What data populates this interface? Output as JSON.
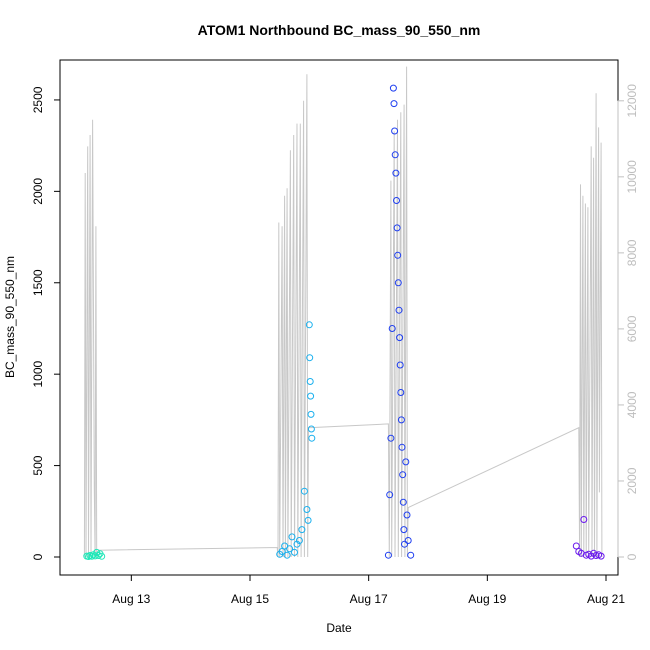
{
  "chart_data": {
    "type": "scatter",
    "title": "ATOM1 Northbound BC_mass_90_550_nm",
    "xlabel": "Date",
    "ylabel": "BC_mass_90_550_nm",
    "xlim": [
      "2024-08-12T00:00",
      "2024-08-21T00:00"
    ],
    "ylim": [
      0,
      2620
    ],
    "y2lim": [
      0,
      12600
    ],
    "x_ticks": [
      "Aug 13",
      "Aug 15",
      "Aug 17",
      "Aug 19",
      "Aug 21"
    ],
    "x_tick_dates": [
      "2024-08-13T00:00",
      "2024-08-15T00:00",
      "2024-08-17T00:00",
      "2024-08-19T00:00",
      "2024-08-21T00:00"
    ],
    "y_ticks": [
      0,
      500,
      1000,
      1500,
      2000,
      2500
    ],
    "y2_ticks": [
      0,
      2000,
      4000,
      6000,
      8000,
      10000,
      12000
    ],
    "grid": false,
    "series": [
      {
        "color": "#1fe8b8",
        "points": [
          [
            "2024-08-12T06:00",
            5
          ],
          [
            "2024-08-12T06:40",
            3
          ],
          [
            "2024-08-12T07:20",
            8
          ],
          [
            "2024-08-12T08:00",
            4
          ],
          [
            "2024-08-12T08:40",
            12
          ],
          [
            "2024-08-12T09:20",
            6
          ],
          [
            "2024-08-12T10:00",
            25
          ],
          [
            "2024-08-12T10:40",
            8
          ],
          [
            "2024-08-12T11:20",
            18
          ],
          [
            "2024-08-12T12:00",
            4
          ]
        ]
      },
      {
        "color": "#1ab0ee",
        "points": [
          [
            "2024-08-15T12:00",
            15
          ],
          [
            "2024-08-15T13:00",
            30
          ],
          [
            "2024-08-15T14:00",
            60
          ],
          [
            "2024-08-15T15:00",
            10
          ],
          [
            "2024-08-15T16:00",
            45
          ],
          [
            "2024-08-15T17:00",
            110
          ],
          [
            "2024-08-15T18:00",
            25
          ],
          [
            "2024-08-15T19:00",
            70
          ],
          [
            "2024-08-15T20:00",
            90
          ],
          [
            "2024-08-15T21:00",
            150
          ],
          [
            "2024-08-15T22:00",
            360
          ],
          [
            "2024-08-15T23:00",
            260
          ],
          [
            "2024-08-15T23:30",
            200
          ],
          [
            "2024-08-16T00:00",
            1270
          ],
          [
            "2024-08-16T00:10",
            1090
          ],
          [
            "2024-08-16T00:20",
            960
          ],
          [
            "2024-08-16T00:30",
            880
          ],
          [
            "2024-08-16T00:40",
            780
          ],
          [
            "2024-08-16T00:50",
            700
          ],
          [
            "2024-08-16T01:00",
            650
          ]
        ]
      },
      {
        "color": "#1f3ff0",
        "points": [
          [
            "2024-08-17T08:00",
            10
          ],
          [
            "2024-08-17T08:30",
            340
          ],
          [
            "2024-08-17T09:00",
            650
          ],
          [
            "2024-08-17T09:30",
            1250
          ],
          [
            "2024-08-17T10:00",
            2565
          ],
          [
            "2024-08-17T10:15",
            2480
          ],
          [
            "2024-08-17T10:30",
            2330
          ],
          [
            "2024-08-17T10:45",
            2200
          ],
          [
            "2024-08-17T11:00",
            2100
          ],
          [
            "2024-08-17T11:15",
            1950
          ],
          [
            "2024-08-17T11:30",
            1800
          ],
          [
            "2024-08-17T11:45",
            1650
          ],
          [
            "2024-08-17T12:00",
            1500
          ],
          [
            "2024-08-17T12:15",
            1350
          ],
          [
            "2024-08-17T12:30",
            1200
          ],
          [
            "2024-08-17T12:45",
            1050
          ],
          [
            "2024-08-17T13:00",
            900
          ],
          [
            "2024-08-17T13:15",
            750
          ],
          [
            "2024-08-17T13:30",
            600
          ],
          [
            "2024-08-17T13:45",
            450
          ],
          [
            "2024-08-17T14:00",
            300
          ],
          [
            "2024-08-17T14:15",
            150
          ],
          [
            "2024-08-17T14:30",
            70
          ],
          [
            "2024-08-17T15:00",
            520
          ],
          [
            "2024-08-17T15:30",
            230
          ],
          [
            "2024-08-17T16:00",
            90
          ],
          [
            "2024-08-17T17:00",
            10
          ]
        ]
      },
      {
        "color": "#6a18ee",
        "points": [
          [
            "2024-08-20T12:00",
            60
          ],
          [
            "2024-08-20T13:00",
            30
          ],
          [
            "2024-08-20T14:00",
            20
          ],
          [
            "2024-08-20T15:00",
            205
          ],
          [
            "2024-08-20T16:00",
            10
          ],
          [
            "2024-08-20T17:00",
            15
          ],
          [
            "2024-08-20T18:00",
            5
          ],
          [
            "2024-08-20T19:00",
            20
          ],
          [
            "2024-08-20T20:00",
            8
          ],
          [
            "2024-08-20T21:00",
            12
          ],
          [
            "2024-08-20T22:00",
            5
          ]
        ]
      }
    ],
    "secondary_line": {
      "color": "#c8c8c8",
      "points": [
        [
          "2024-08-12T05:00",
          0
        ],
        [
          "2024-08-12T05:20",
          10100
        ],
        [
          "2024-08-12T05:40",
          0
        ],
        [
          "2024-08-12T06:20",
          10800
        ],
        [
          "2024-08-12T06:40",
          0
        ],
        [
          "2024-08-12T07:20",
          11100
        ],
        [
          "2024-08-12T07:40",
          0
        ],
        [
          "2024-08-12T08:20",
          11500
        ],
        [
          "2024-08-12T09:00",
          1800
        ],
        [
          "2024-08-12T09:20",
          0
        ],
        [
          "2024-08-12T09:40",
          8700
        ],
        [
          "2024-08-12T10:00",
          0
        ],
        [
          "2024-08-12T10:40",
          180
        ],
        [
          "2024-08-15T11:00",
          250
        ],
        [
          "2024-08-15T11:20",
          0
        ],
        [
          "2024-08-15T11:40",
          8800
        ],
        [
          "2024-08-15T12:00",
          0
        ],
        [
          "2024-08-15T13:00",
          8700
        ],
        [
          "2024-08-15T13:20",
          0
        ],
        [
          "2024-08-15T14:00",
          9500
        ],
        [
          "2024-08-15T14:20",
          0
        ],
        [
          "2024-08-15T15:00",
          9700
        ],
        [
          "2024-08-15T15:20",
          0
        ],
        [
          "2024-08-15T16:20",
          10700
        ],
        [
          "2024-08-15T16:40",
          0
        ],
        [
          "2024-08-15T17:40",
          11100
        ],
        [
          "2024-08-15T18:00",
          0
        ],
        [
          "2024-08-15T19:00",
          11400
        ],
        [
          "2024-08-15T19:20",
          0
        ],
        [
          "2024-08-15T20:20",
          11400
        ],
        [
          "2024-08-15T20:40",
          0
        ],
        [
          "2024-08-15T21:40",
          12000
        ],
        [
          "2024-08-15T22:00",
          0
        ],
        [
          "2024-08-15T23:00",
          12700
        ],
        [
          "2024-08-15T23:20",
          0
        ],
        [
          "2024-08-15T23:40",
          3400
        ],
        [
          "2024-08-17T08:00",
          3500
        ],
        [
          "2024-08-17T08:20",
          0
        ],
        [
          "2024-08-17T09:00",
          9900
        ],
        [
          "2024-08-17T09:20",
          0
        ],
        [
          "2024-08-17T10:20",
          11200
        ],
        [
          "2024-08-17T10:40",
          0
        ],
        [
          "2024-08-17T11:40",
          11500
        ],
        [
          "2024-08-17T12:00",
          0
        ],
        [
          "2024-08-17T13:00",
          11700
        ],
        [
          "2024-08-17T13:20",
          0
        ],
        [
          "2024-08-17T14:20",
          11900
        ],
        [
          "2024-08-17T14:40",
          0
        ],
        [
          "2024-08-17T15:20",
          12900
        ],
        [
          "2024-08-17T15:40",
          0
        ],
        [
          "2024-08-17T16:00",
          1300
        ],
        [
          "2024-08-20T13:00",
          3400
        ],
        [
          "2024-08-20T13:20",
          0
        ],
        [
          "2024-08-20T13:40",
          9800
        ],
        [
          "2024-08-20T14:00",
          0
        ],
        [
          "2024-08-20T14:40",
          9500
        ],
        [
          "2024-08-20T15:00",
          0
        ],
        [
          "2024-08-20T15:40",
          9300
        ],
        [
          "2024-08-20T16:00",
          0
        ],
        [
          "2024-08-20T16:40",
          9200
        ],
        [
          "2024-08-20T17:00",
          0
        ],
        [
          "2024-08-20T18:00",
          10800
        ],
        [
          "2024-08-20T18:20",
          0
        ],
        [
          "2024-08-20T19:00",
          10500
        ],
        [
          "2024-08-20T19:20",
          0
        ],
        [
          "2024-08-20T20:00",
          12200
        ],
        [
          "2024-08-20T20:20",
          0
        ],
        [
          "2024-08-20T21:00",
          11300
        ],
        [
          "2024-08-20T21:20",
          1700
        ],
        [
          "2024-08-20T22:00",
          10900
        ],
        [
          "2024-08-20T22:20",
          0
        ]
      ]
    },
    "legend": "none"
  }
}
